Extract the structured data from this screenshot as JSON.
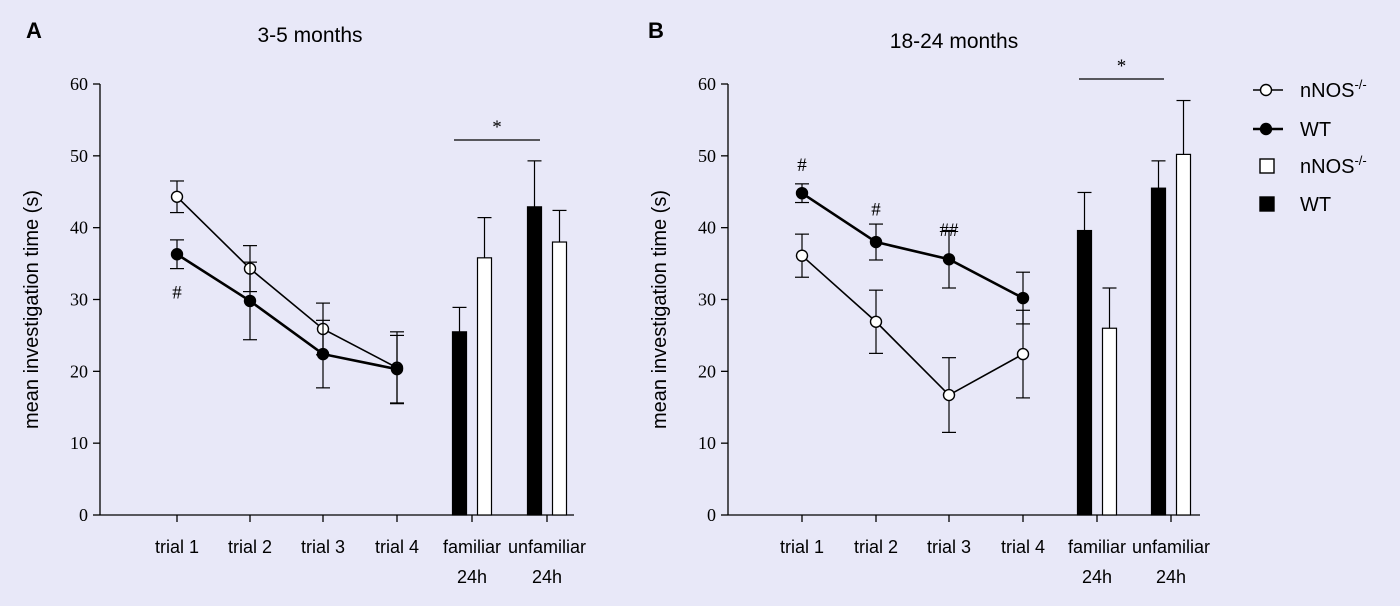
{
  "colors": {
    "background": "#e8e8f8",
    "ink": "#000000",
    "open": "#ffffff"
  },
  "legend": [
    {
      "label": "nNOS",
      "sup": "-/-",
      "kind": "line-open"
    },
    {
      "label": "WT",
      "sup": "",
      "kind": "line-filled"
    },
    {
      "label": "nNOS",
      "sup": "-/-",
      "kind": "bar-open"
    },
    {
      "label": "WT",
      "sup": "",
      "kind": "bar-filled"
    }
  ],
  "chart_data": [
    {
      "type": "line+bar",
      "panel_label": "A",
      "title": "3-5 months",
      "ylabel": "mean investigation time (s)",
      "ylim": [
        0,
        60
      ],
      "yticks": [
        0,
        10,
        20,
        30,
        40,
        50,
        60
      ],
      "line_categories": [
        "trial 1",
        "trial 2",
        "trial 3",
        "trial 4"
      ],
      "bar_categories": [
        {
          "line1": "familiar",
          "line2": "24h"
        },
        {
          "line1": "unfamiliar",
          "line2": "24h"
        }
      ],
      "series": [
        {
          "name": "nNOS-/-",
          "style": "open",
          "line_values": [
            44.3,
            34.3,
            25.9,
            20.5
          ],
          "line_errors": [
            2.2,
            3.2,
            3.6,
            5.0
          ],
          "bar_values": [
            35.8,
            38.0
          ],
          "bar_errors": [
            5.6,
            4.4
          ]
        },
        {
          "name": "WT",
          "style": "filled",
          "line_values": [
            36.3,
            29.8,
            22.4,
            20.3
          ],
          "line_errors": [
            2.0,
            5.4,
            4.7,
            4.7
          ],
          "bar_values": [
            25.5,
            42.9
          ],
          "bar_errors": [
            3.4,
            6.4
          ]
        }
      ],
      "annotations": [
        {
          "text": "#",
          "type": "point",
          "category": 0,
          "y": 31
        },
        {
          "text": "*",
          "type": "bracket",
          "from": 0,
          "to": 1,
          "y": 52.2
        }
      ]
    },
    {
      "type": "line+bar",
      "panel_label": "B",
      "title": "18-24 months",
      "ylabel": "mean investigation time (s)",
      "ylim": [
        0,
        60
      ],
      "yticks": [
        0,
        10,
        20,
        30,
        40,
        50,
        60
      ],
      "line_categories": [
        "trial 1",
        "trial 2",
        "trial 3",
        "trial 4"
      ],
      "bar_categories": [
        {
          "line1": "familiar",
          "line2": "24h"
        },
        {
          "line1": "unfamiliar",
          "line2": "24h"
        }
      ],
      "series": [
        {
          "name": "nNOS-/-",
          "style": "open",
          "line_values": [
            36.1,
            26.9,
            16.7,
            22.4
          ],
          "line_errors": [
            3.0,
            4.4,
            5.2,
            6.1
          ],
          "bar_values": [
            26.0,
            50.2
          ],
          "bar_errors": [
            5.6,
            7.5
          ]
        },
        {
          "name": "WT",
          "style": "filled",
          "line_values": [
            44.8,
            38.0,
            35.6,
            30.2
          ],
          "line_errors": [
            1.3,
            2.5,
            4.0,
            3.6
          ],
          "bar_values": [
            39.6,
            45.5
          ],
          "bar_errors": [
            5.3,
            3.8
          ]
        }
      ],
      "annotations": [
        {
          "text": "#",
          "type": "point",
          "category": 0,
          "y": 48.7
        },
        {
          "text": "#",
          "type": "point",
          "category": 1,
          "y": 42.5
        },
        {
          "text": "##",
          "type": "point",
          "category": 2,
          "y": 39.7
        },
        {
          "text": "*",
          "type": "bracket",
          "from": 0,
          "to": 1,
          "y": 60.7
        }
      ]
    }
  ]
}
